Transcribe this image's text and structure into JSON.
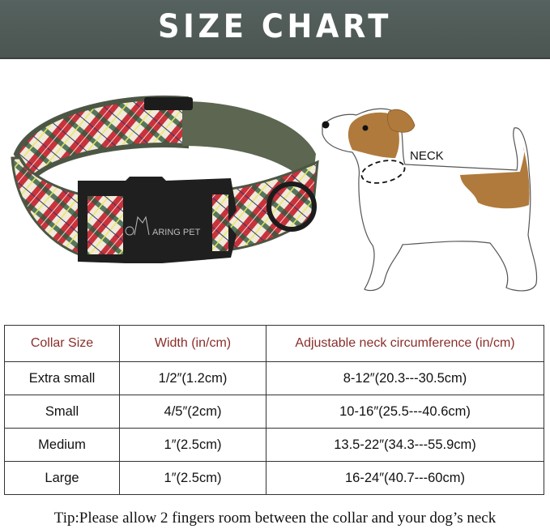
{
  "header": {
    "title": "SIZE CHART"
  },
  "collar_image": {
    "brand_logo": "ARING PET",
    "band_color": "#56604c",
    "plaid_colors": [
      "#c8323a",
      "#f1e9dc",
      "#2e5a3e",
      "#e8e95a"
    ]
  },
  "dog_image": {
    "neck_label": "NECK",
    "patch_color": "#b07a3c"
  },
  "table": {
    "headers": [
      "Collar Size",
      "Width (in/cm)",
      "Adjustable neck circumference (in/cm)"
    ],
    "header_color": "#8a2e2a",
    "rows": [
      [
        "Extra small",
        "1/2″(1.2cm)",
        "8-12″(20.3---30.5cm)"
      ],
      [
        "Small",
        "4/5″(2cm)",
        "10-16″(25.5---40.6cm)"
      ],
      [
        "Medium",
        "1″(2.5cm)",
        "13.5-22″(34.3---55.9cm)"
      ],
      [
        "Large",
        "1″(2.5cm)",
        "16-24″(40.7---60cm)"
      ]
    ]
  },
  "tip": "Tip:Please allow 2 fingers room between the collar and your dog’s neck"
}
